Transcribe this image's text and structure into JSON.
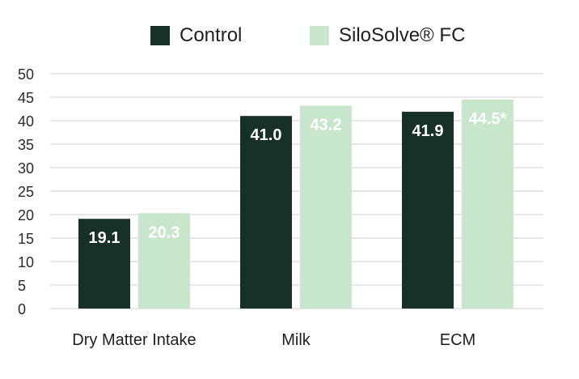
{
  "chart_data": {
    "type": "bar",
    "categories": [
      "Dry Matter Intake",
      "Milk",
      "ECM"
    ],
    "series": [
      {
        "name": "Control",
        "values": [
          19.1,
          41.0,
          41.9
        ],
        "labels": [
          "19.1",
          "41.0",
          "41.9"
        ],
        "color": "#173129"
      },
      {
        "name": "SiloSolve® FC",
        "values": [
          20.3,
          43.2,
          44.5
        ],
        "labels": [
          "20.3",
          "43.2",
          "44.5*"
        ],
        "color": "#c7e6cc"
      }
    ],
    "yticks": [
      "50",
      "45",
      "40",
      "35",
      "30",
      "25",
      "20",
      "15",
      "10",
      "5",
      "0"
    ],
    "ylim": [
      0,
      50
    ],
    "grid": true,
    "legend_position": "top-center"
  }
}
